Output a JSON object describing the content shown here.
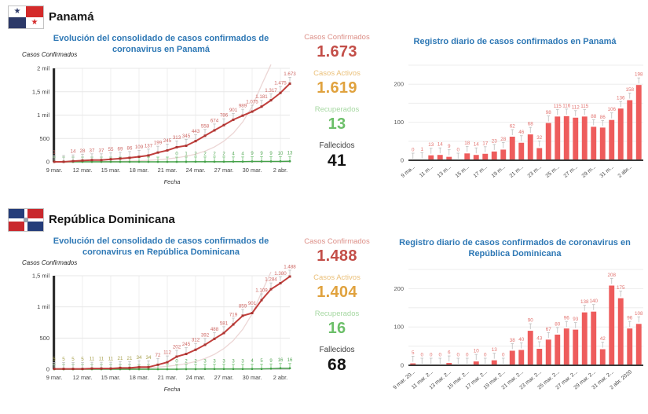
{
  "colors": {
    "title_blue": "#2e78b5",
    "confirmed_red": "#c34e48",
    "active_orange": "#e0a23e",
    "recovered_green": "#6cbf69",
    "deaths_black": "#141414",
    "line_red": "#c13f3c",
    "line_green": "#43a047",
    "bar_red": "#ee5c5c",
    "bar_label": "#e2726e",
    "olive_label": "#a7a04a",
    "grid_grey": "#e7e7e7"
  },
  "sections": [
    {
      "country": "Panamá",
      "flag": "panama-flag",
      "stats": [
        {
          "label": "Casos Confirmados",
          "value": "1.673"
        },
        {
          "label": "Casos Activos",
          "value": "1.619"
        },
        {
          "label": "Recuperados",
          "value": "13"
        },
        {
          "label": "Fallecidos",
          "value": "41"
        }
      ]
    },
    {
      "country": "República Dominicana",
      "flag": "dominican-republic-flag",
      "stats": [
        {
          "label": "Casos Confirmados",
          "value": "1.488"
        },
        {
          "label": "Casos Activos",
          "value": "1.404"
        },
        {
          "label": "Recuperados",
          "value": "16"
        },
        {
          "label": "Fallecidos",
          "value": "68"
        }
      ]
    }
  ],
  "chart_data": [
    {
      "id": "panama-evolution",
      "type": "line",
      "title": "Evolución del consolidado de casos confirmados de coronavirus en Panamá",
      "ylabel": "Casos Confirmados",
      "xlabel": "Fecha",
      "ymax": 2000,
      "ytick_values": [
        0,
        500,
        1000,
        1500,
        2000
      ],
      "ytick_labels": [
        "0",
        "500",
        "1 mil",
        "1,5 mil",
        "2 mil"
      ],
      "xtick_every": 3,
      "xticklabels": [
        "9 mar.",
        "12 mar.",
        "15 mar.",
        "18 mar.",
        "21 mar.",
        "24 mar.",
        "27 mar.",
        "30 mar.",
        "2 abr."
      ],
      "olive_label_count": 0,
      "series": [
        {
          "name": "Confirmados",
          "values": [
            1,
            1,
            14,
            28,
            37,
            37,
            55,
            69,
            86,
            109,
            137,
            199,
            245,
            313,
            345,
            443,
            558,
            674,
            786,
            901,
            989,
            1075,
            1181,
            1317,
            1475,
            1673
          ],
          "labels": [
            "1",
            "",
            "14",
            "28",
            "37",
            "37",
            "55",
            "69",
            "86",
            "109",
            "137",
            "199",
            "245",
            "313",
            "345",
            "443",
            "558",
            "674",
            "786",
            "901",
            "989",
            "1.075",
            "1.181",
            "1.317",
            "1.475",
            "1.673"
          ]
        },
        {
          "name": "Recuperados",
          "values": [
            0,
            0,
            0,
            0,
            0,
            0,
            0,
            0,
            0,
            0,
            0,
            0,
            0,
            0,
            1,
            2,
            2,
            2,
            2,
            4,
            4,
            9,
            9,
            9,
            10,
            13
          ],
          "labels": [
            "",
            "",
            "",
            "",
            "",
            "",
            "",
            "",
            "",
            "",
            "",
            "",
            "",
            "0",
            "1",
            "2",
            "2",
            "2",
            "2",
            "4",
            "4",
            "9",
            "9",
            "9",
            "10",
            "13"
          ]
        }
      ]
    },
    {
      "id": "panama-daily",
      "type": "bar",
      "title": "Registro diario de casos confirmados en Panamá",
      "ymax": 250,
      "ytick_values": [
        0,
        100,
        200
      ],
      "ytick_labels": [
        "0",
        "100",
        "200"
      ],
      "values": [
        0,
        1,
        13,
        14,
        9,
        0,
        18,
        14,
        17,
        23,
        28,
        62,
        46,
        68,
        32,
        98,
        115,
        116,
        112,
        115,
        88,
        86,
        106,
        136,
        158,
        198
      ],
      "xticklabels": [
        "9 ma...",
        "11 m...",
        "13 m...",
        "15 m...",
        "17 m...",
        "19 m...",
        "21 m...",
        "23 m...",
        "25 m...",
        "27 m...",
        "29 m...",
        "31 m...",
        "2 abr..."
      ],
      "xlabel_space": 38
    },
    {
      "id": "dominican-evolution",
      "type": "line",
      "title": "Evolución del consolidado de casos confirmados de coronavirus en República Dominicana",
      "ylabel": "Casos Confirmados",
      "xlabel": "Fecha",
      "ymax": 1500,
      "ytick_values": [
        0,
        500,
        1000,
        1500
      ],
      "ytick_labels": [
        "0",
        "500",
        "1 mil",
        "1,5 mil"
      ],
      "xtick_every": 3,
      "xticklabels": [
        "9 mar.",
        "12 mar.",
        "15 mar.",
        "18 mar.",
        "21 mar.",
        "24 mar.",
        "27 mar.",
        "30 mar.",
        "2 abr."
      ],
      "olive_label_count": 11,
      "series": [
        {
          "name": "Confirmados",
          "values": [
            5,
            5,
            5,
            5,
            11,
            11,
            11,
            21,
            21,
            34,
            34,
            72,
            112,
            202,
            245,
            312,
            392,
            488,
            581,
            719,
            859,
            901,
            1109,
            1284,
            1380,
            1488
          ],
          "labels": [
            "5",
            "5",
            "5",
            "5",
            "11",
            "11",
            "11",
            "21",
            "21",
            "34",
            "34",
            "72",
            "112",
            "202",
            "245",
            "312",
            "392",
            "488",
            "581",
            "719",
            "859",
            "901",
            "1.109",
            "1.284",
            "1.380",
            "1.488"
          ]
        },
        {
          "name": "Recuperados",
          "values": [
            0,
            0,
            0,
            0,
            0,
            0,
            0,
            0,
            0,
            0,
            0,
            0,
            0,
            0,
            2,
            2,
            3,
            3,
            3,
            3,
            3,
            4,
            5,
            9,
            16,
            16
          ],
          "labels": [
            "",
            "",
            "",
            "",
            "",
            "",
            "",
            "",
            "",
            "",
            "",
            "",
            "",
            "0",
            "2",
            "2",
            "3",
            "3",
            "3",
            "3",
            "3",
            "4",
            "5",
            "9",
            "16",
            "16"
          ]
        }
      ]
    },
    {
      "id": "dominican-daily",
      "type": "bar",
      "title": "Registro diario de casos confirmados de coronavirus en República Dominicana",
      "ymax": 250,
      "ytick_values": [
        0,
        100,
        200
      ],
      "ytick_labels": [
        "0",
        "100",
        "200"
      ],
      "values": [
        5,
        0,
        0,
        0,
        6,
        0,
        0,
        10,
        0,
        13,
        0,
        38,
        40,
        90,
        43,
        67,
        80,
        96,
        93,
        138,
        140,
        42,
        208,
        175,
        96,
        108
      ],
      "xticklabels": [
        "9 mar. 20...",
        "11 mar. 2...",
        "13 mar. 2...",
        "15 mar. 2...",
        "17 mar. 2...",
        "19 mar. 2...",
        "21 mar. 2...",
        "23 mar. 2...",
        "25 mar. 2...",
        "27 mar. 2...",
        "29 mar. 2...",
        "31 mar. 2...",
        "2 abr. 2020"
      ],
      "xlabel_space": 57
    }
  ]
}
